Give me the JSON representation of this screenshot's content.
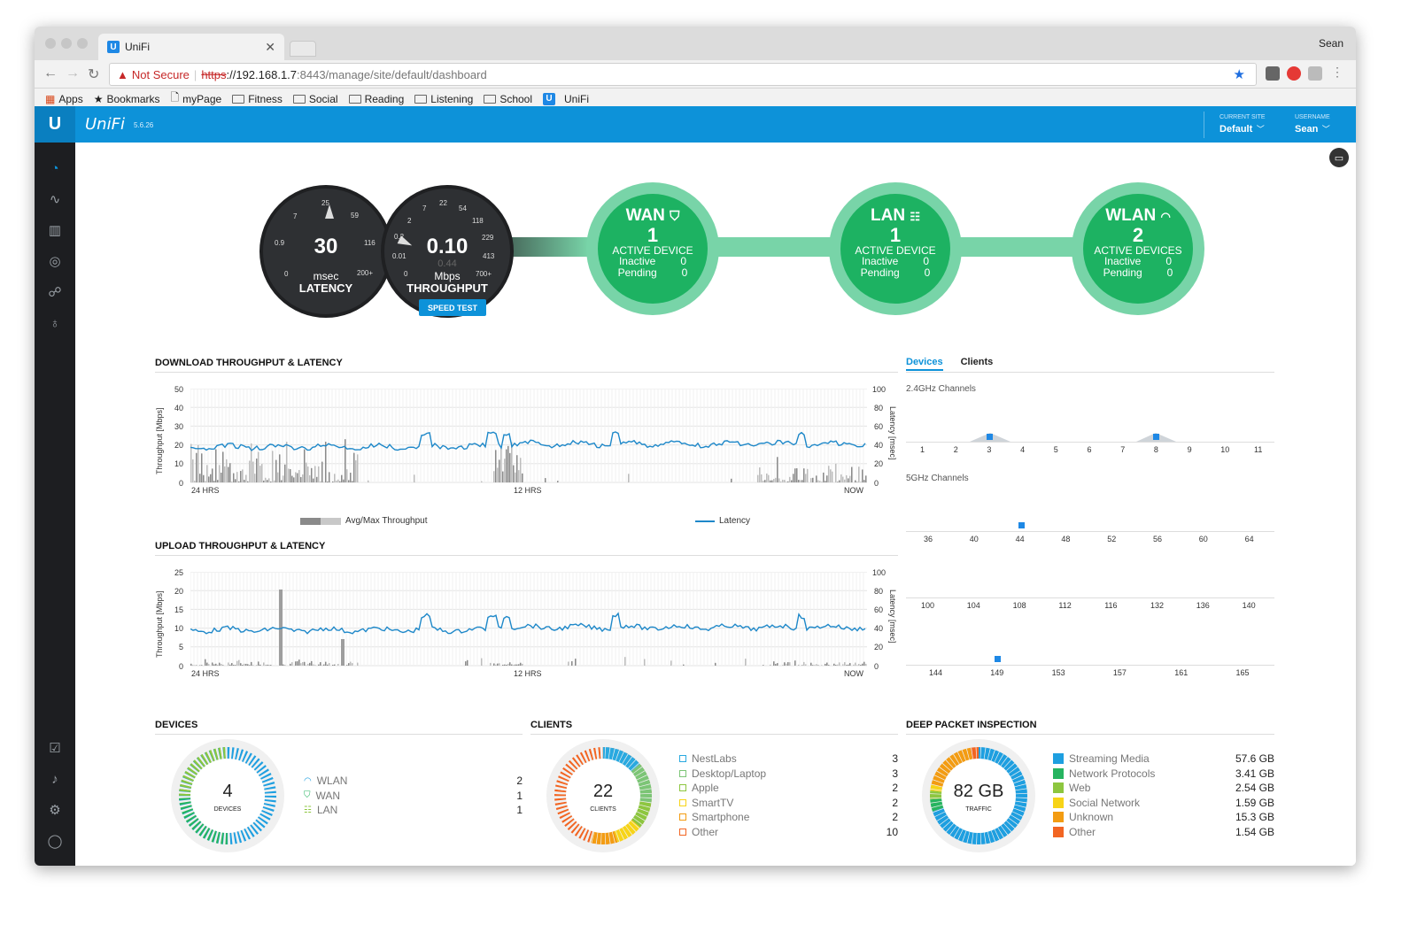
{
  "browser": {
    "tab_title": "UniFi",
    "profile": "Sean",
    "security": "Not Secure",
    "url_scheme": "https",
    "url_host": "://192.168.1.7",
    "url_path": ":8443/manage/site/default/dashboard",
    "bookmarks": [
      "Apps",
      "Bookmarks",
      "myPage",
      "Fitness",
      "Social",
      "Reading",
      "Listening",
      "School",
      "UniFi"
    ]
  },
  "header": {
    "brand": "UniFi",
    "version": "5.6.26",
    "site_label": "CURRENT SITE",
    "site_value": "Default",
    "user_label": "USERNAME",
    "user_value": "Sean"
  },
  "latency": {
    "value": "30",
    "unit": "msec",
    "label": "LATENCY",
    "ticks": [
      "25",
      "59",
      "116",
      "200+",
      "0",
      "0.9",
      "7"
    ]
  },
  "throughput": {
    "value": "0.10",
    "sub": "0.44",
    "unit": "Mbps",
    "label": "THROUGHPUT",
    "ticks": [
      "22",
      "54",
      "118",
      "229",
      "413",
      "700+",
      "0",
      "0.01",
      "0.2",
      "2",
      "7"
    ],
    "button": "SPEED TEST"
  },
  "wan": {
    "title": "WAN",
    "count": "1",
    "active": "ACTIVE DEVICE",
    "inactive_label": "Inactive",
    "inactive": "0",
    "pending_label": "Pending",
    "pending": "0"
  },
  "lan": {
    "title": "LAN",
    "count": "1",
    "active": "ACTIVE DEVICE",
    "inactive_label": "Inactive",
    "inactive": "0",
    "pending_label": "Pending",
    "pending": "0"
  },
  "wlan": {
    "title": "WLAN",
    "count": "2",
    "active": "ACTIVE DEVICES",
    "inactive_label": "Inactive",
    "inactive": "0",
    "pending_label": "Pending",
    "pending": "0"
  },
  "download": {
    "title": "DOWNLOAD THROUGHPUT & LATENCY",
    "ylabel_left": "Throughput [Mbps]",
    "ylabel_right": "Latency [msec]",
    "left_ticks": [
      "50",
      "40",
      "30",
      "20",
      "10",
      "0"
    ],
    "right_ticks": [
      "100",
      "80",
      "60",
      "40",
      "20",
      "0"
    ],
    "x_ticks": [
      "24 HRS",
      "12 HRS",
      "NOW"
    ],
    "legend_throughput": "Avg/Max Throughput",
    "legend_latency": "Latency"
  },
  "upload": {
    "title": "UPLOAD THROUGHPUT & LATENCY",
    "ylabel_left": "Throughput [Mbps]",
    "ylabel_right": "Latency [msec]",
    "left_ticks": [
      "25",
      "20",
      "15",
      "10",
      "5",
      "0"
    ],
    "right_ticks": [
      "100",
      "80",
      "60",
      "40",
      "20",
      "0"
    ],
    "x_ticks": [
      "24 HRS",
      "12 HRS",
      "NOW"
    ]
  },
  "channel_tabs": {
    "devices": "Devices",
    "clients": "Clients"
  },
  "channels": {
    "ghz24_label": "2.4GHz Channels",
    "ghz24": [
      "1",
      "2",
      "3",
      "4",
      "5",
      "6",
      "7",
      "8",
      "9",
      "10",
      "11"
    ],
    "ghz5_label": "5GHz Channels",
    "ghz5_row1": [
      "36",
      "40",
      "44",
      "48",
      "52",
      "56",
      "60",
      "64"
    ],
    "ghz5_row2": [
      "100",
      "104",
      "108",
      "112",
      "116",
      "132",
      "136",
      "140"
    ],
    "ghz5_row3": [
      "144",
      "149",
      "153",
      "157",
      "161",
      "165"
    ]
  },
  "devices": {
    "title": "DEVICES",
    "total": "4",
    "caption": "DEVICES",
    "items": [
      {
        "label": "WLAN",
        "value": "2"
      },
      {
        "label": "WAN",
        "value": "1"
      },
      {
        "label": "LAN",
        "value": "1"
      }
    ]
  },
  "clients": {
    "title": "CLIENTS",
    "total": "22",
    "caption": "CLIENTS",
    "items": [
      {
        "label": "NestLabs",
        "value": "3",
        "color": "#29a9e0"
      },
      {
        "label": "Desktop/Laptop",
        "value": "3",
        "color": "#7cc576"
      },
      {
        "label": "Apple",
        "value": "2",
        "color": "#8dc63f"
      },
      {
        "label": "SmartTV",
        "value": "2",
        "color": "#f7d417"
      },
      {
        "label": "Smartphone",
        "value": "2",
        "color": "#f39c12"
      },
      {
        "label": "Other",
        "value": "10",
        "color": "#f26522"
      }
    ]
  },
  "dpi": {
    "title": "DEEP PACKET INSPECTION",
    "total": "82 GB",
    "caption": "TRAFFIC",
    "items": [
      {
        "label": "Streaming Media",
        "value": "57.6 GB",
        "color": "#1e9fe0"
      },
      {
        "label": "Network Protocols",
        "value": "3.41 GB",
        "color": "#26b460"
      },
      {
        "label": "Web",
        "value": "2.54 GB",
        "color": "#8dc63f"
      },
      {
        "label": "Social Network",
        "value": "1.59 GB",
        "color": "#f7d417"
      },
      {
        "label": "Unknown",
        "value": "15.3 GB",
        "color": "#f39c12"
      },
      {
        "label": "Other",
        "value": "1.54 GB",
        "color": "#f26522"
      }
    ]
  },
  "colors": {
    "accent": "#0d92d9",
    "green": "#1db262",
    "light_green": "#78d4a8",
    "latency_line": "#1e88c9",
    "bar": "#9e9e9e"
  }
}
